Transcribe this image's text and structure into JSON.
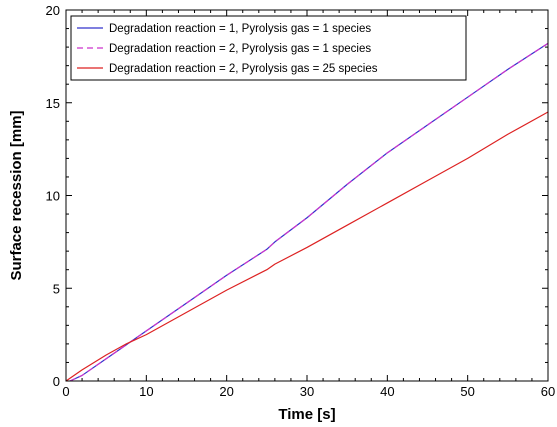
{
  "chart_data": {
    "type": "line",
    "title": "",
    "xlabel": "Time [s]",
    "ylabel": "Surface recession [mm]",
    "xlim": [
      0,
      60
    ],
    "ylim": [
      0,
      20
    ],
    "xticks": [
      "0",
      "10",
      "20",
      "30",
      "40",
      "50",
      "60"
    ],
    "yticks": [
      "0",
      "5",
      "10",
      "15",
      "20"
    ],
    "grid": false,
    "legend_position": "top-left",
    "series": [
      {
        "name": "Degradation reaction = 1, Pyrolysis gas = 1 species",
        "color": "#3333cc",
        "dash": "solid",
        "x": [
          0.5,
          2,
          5,
          8,
          10,
          15,
          20,
          25,
          26,
          30,
          35,
          40,
          45,
          50,
          55,
          60
        ],
        "y": [
          0,
          0.3,
          1.2,
          2.1,
          2.7,
          4.2,
          5.7,
          7.1,
          7.5,
          8.8,
          10.6,
          12.3,
          13.8,
          15.3,
          16.8,
          18.2
        ]
      },
      {
        "name": "Degradation reaction = 2, Pyrolysis gas = 1 species",
        "color": "#cc33cc",
        "dash": "dashed",
        "x": [
          0.5,
          2,
          5,
          8,
          10,
          15,
          20,
          25,
          26,
          30,
          35,
          40,
          45,
          50,
          55,
          60
        ],
        "y": [
          0,
          0.3,
          1.2,
          2.1,
          2.7,
          4.2,
          5.7,
          7.1,
          7.5,
          8.8,
          10.6,
          12.3,
          13.8,
          15.3,
          16.8,
          18.2
        ]
      },
      {
        "name": "Degradation reaction = 2, Pyrolysis gas = 25 species",
        "color": "#dd2222",
        "dash": "solid",
        "x": [
          0,
          2,
          5,
          7.5,
          10,
          15,
          20,
          25,
          26,
          30,
          35,
          40,
          45,
          50,
          55,
          60
        ],
        "y": [
          0,
          0.6,
          1.4,
          2.0,
          2.5,
          3.7,
          4.9,
          6.0,
          6.3,
          7.2,
          8.4,
          9.6,
          10.8,
          12.0,
          13.3,
          14.5
        ]
      }
    ]
  }
}
